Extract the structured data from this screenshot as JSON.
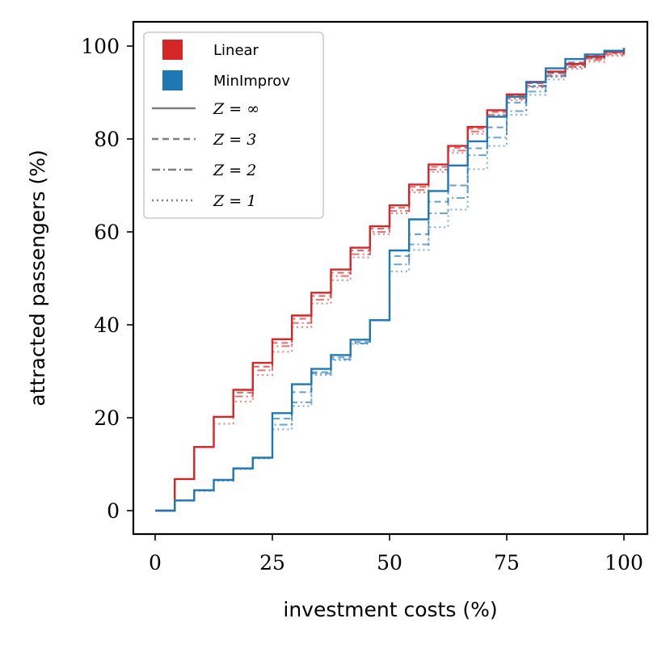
{
  "chart_data": {
    "type": "line",
    "step": true,
    "xlabel": "investment costs (%)",
    "ylabel": "attracted passengers (%)",
    "xlim": [
      -5,
      105
    ],
    "ylim": [
      -5,
      105
    ],
    "xticks": [
      0,
      25,
      50,
      75,
      100
    ],
    "yticks": [
      0,
      20,
      40,
      60,
      80,
      100
    ],
    "grid": false,
    "legend_position": "top-left",
    "colors": {
      "Linear": "#d62728",
      "MinImprov": "#1f77b4",
      "style_key": "#7f7f7f"
    },
    "legend": {
      "methods": [
        "Linear",
        "MinImprov"
      ],
      "styles": [
        {
          "label": "Z = ∞",
          "dash": "solid"
        },
        {
          "label": "Z = 3",
          "dash": "dashed"
        },
        {
          "label": "Z = 2",
          "dash": "dashdot"
        },
        {
          "label": "Z = 1",
          "dash": "dotted"
        }
      ]
    },
    "series": [
      {
        "method": "Linear",
        "z": "inf",
        "x": [
          0,
          4.17,
          8.33,
          12.5,
          16.67,
          20.83,
          25,
          29.17,
          33.33,
          37.5,
          41.67,
          45.83,
          50,
          54.17,
          58.33,
          62.5,
          66.67,
          70.83,
          75,
          79.17,
          83.33,
          87.5,
          91.67,
          95.83,
          100
        ],
        "y": [
          0,
          6.8,
          13.7,
          20.2,
          26.0,
          31.8,
          36.9,
          42.0,
          46.9,
          51.9,
          56.6,
          61.2,
          65.7,
          70.2,
          74.5,
          78.5,
          82.6,
          86.2,
          89.6,
          92.3,
          94.5,
          96.2,
          97.7,
          98.8,
          99.5
        ]
      },
      {
        "method": "Linear",
        "z": "3",
        "x": [
          0,
          4.17,
          8.33,
          12.5,
          16.67,
          20.83,
          25,
          29.17,
          33.33,
          37.5,
          41.67,
          45.83,
          50,
          54.17,
          58.33,
          62.5,
          66.67,
          70.83,
          75,
          79.17,
          83.33,
          87.5,
          91.67,
          95.83,
          100
        ],
        "y": [
          0,
          6.8,
          13.7,
          20.2,
          25.4,
          31.0,
          36.1,
          41.3,
          46.2,
          51.2,
          56.0,
          60.7,
          65.2,
          69.7,
          74.0,
          78.1,
          82.2,
          85.8,
          89.3,
          92.0,
          94.2,
          95.9,
          97.4,
          98.5,
          99.5
        ]
      },
      {
        "method": "Linear",
        "z": "2",
        "x": [
          0,
          4.17,
          8.33,
          12.5,
          16.67,
          20.83,
          25,
          29.17,
          33.33,
          37.5,
          41.67,
          45.83,
          50,
          54.17,
          58.33,
          62.5,
          66.67,
          70.83,
          75,
          79.17,
          83.33,
          87.5,
          91.67,
          95.83,
          100
        ],
        "y": [
          0,
          6.8,
          13.7,
          20.2,
          24.6,
          30.2,
          35.4,
          40.4,
          45.4,
          50.5,
          55.2,
          60.0,
          64.5,
          69.0,
          73.4,
          77.5,
          81.6,
          85.2,
          88.7,
          91.5,
          93.7,
          95.5,
          97.0,
          98.2,
          99.5
        ]
      },
      {
        "method": "Linear",
        "z": "1",
        "x": [
          0,
          4.17,
          8.33,
          12.5,
          16.67,
          20.83,
          25,
          29.17,
          33.33,
          37.5,
          41.67,
          45.83,
          50,
          54.17,
          58.33,
          62.5,
          66.67,
          70.83,
          75,
          79.17,
          83.33,
          87.5,
          91.67,
          95.83,
          100
        ],
        "y": [
          0,
          6.8,
          13.7,
          18.7,
          23.5,
          29.2,
          34.2,
          39.5,
          44.6,
          49.6,
          54.5,
          59.5,
          64.0,
          68.5,
          72.9,
          77.0,
          81.1,
          84.8,
          88.3,
          91.1,
          93.3,
          95.1,
          96.6,
          97.9,
          99.5
        ]
      },
      {
        "method": "MinImprov",
        "z": "inf",
        "x": [
          0,
          4.17,
          8.33,
          12.5,
          16.67,
          20.83,
          25,
          29.17,
          33.33,
          37.5,
          41.67,
          45.83,
          50,
          54.17,
          58.33,
          62.5,
          66.67,
          70.83,
          75,
          79.17,
          83.33,
          87.5,
          91.67,
          95.83,
          100
        ],
        "y": [
          0,
          2.2,
          4.4,
          6.6,
          9.1,
          11.4,
          21.0,
          27.2,
          30.5,
          33.5,
          36.8,
          41.0,
          56.0,
          62.7,
          68.8,
          74.3,
          79.5,
          84.8,
          89.1,
          92.2,
          95.2,
          97.2,
          98.2,
          99.0,
          99.6
        ]
      },
      {
        "method": "MinImprov",
        "z": "3",
        "x": [
          0,
          4.17,
          8.33,
          12.5,
          16.67,
          20.83,
          25,
          29.17,
          33.33,
          37.5,
          41.67,
          45.83,
          50,
          54.17,
          58.33,
          62.5,
          66.67,
          70.83,
          75,
          79.17,
          83.33,
          87.5,
          91.67,
          95.83,
          100
        ],
        "y": [
          0,
          2.2,
          4.4,
          6.6,
          9.1,
          11.4,
          19.8,
          25.5,
          29.8,
          33.0,
          36.3,
          41.0,
          54.8,
          59.5,
          66.5,
          70.0,
          78.0,
          82.5,
          87.8,
          91.3,
          94.2,
          96.5,
          97.9,
          98.9,
          99.6
        ]
      },
      {
        "method": "MinImprov",
        "z": "2",
        "x": [
          0,
          4.17,
          8.33,
          12.5,
          16.67,
          20.83,
          25,
          29.17,
          33.33,
          37.5,
          41.67,
          45.83,
          50,
          54.17,
          58.33,
          62.5,
          66.67,
          70.83,
          75,
          79.17,
          83.33,
          87.5,
          91.67,
          95.83,
          100
        ],
        "y": [
          0,
          2.2,
          4.4,
          6.6,
          9.1,
          11.4,
          18.5,
          23.3,
          29.5,
          32.6,
          36.0,
          41.0,
          53.0,
          57.3,
          64.0,
          67.3,
          76.5,
          80.3,
          86.0,
          90.2,
          93.5,
          95.9,
          97.5,
          98.7,
          99.6
        ]
      },
      {
        "method": "MinImprov",
        "z": "1",
        "x": [
          0,
          4.17,
          8.33,
          12.5,
          16.67,
          20.83,
          25,
          29.17,
          33.33,
          37.5,
          41.67,
          45.83,
          50,
          54.17,
          58.33,
          62.5,
          66.67,
          70.83,
          75,
          79.17,
          83.33,
          87.5,
          91.67,
          95.83,
          100
        ],
        "y": [
          0,
          2.2,
          4.2,
          6.4,
          8.9,
          11.2,
          17.5,
          22.5,
          29.2,
          32.4,
          35.9,
          41.0,
          51.5,
          56.1,
          61.0,
          64.8,
          73.5,
          78.5,
          85.2,
          89.5,
          92.8,
          95.4,
          97.2,
          98.5,
          99.6
        ]
      }
    ]
  }
}
